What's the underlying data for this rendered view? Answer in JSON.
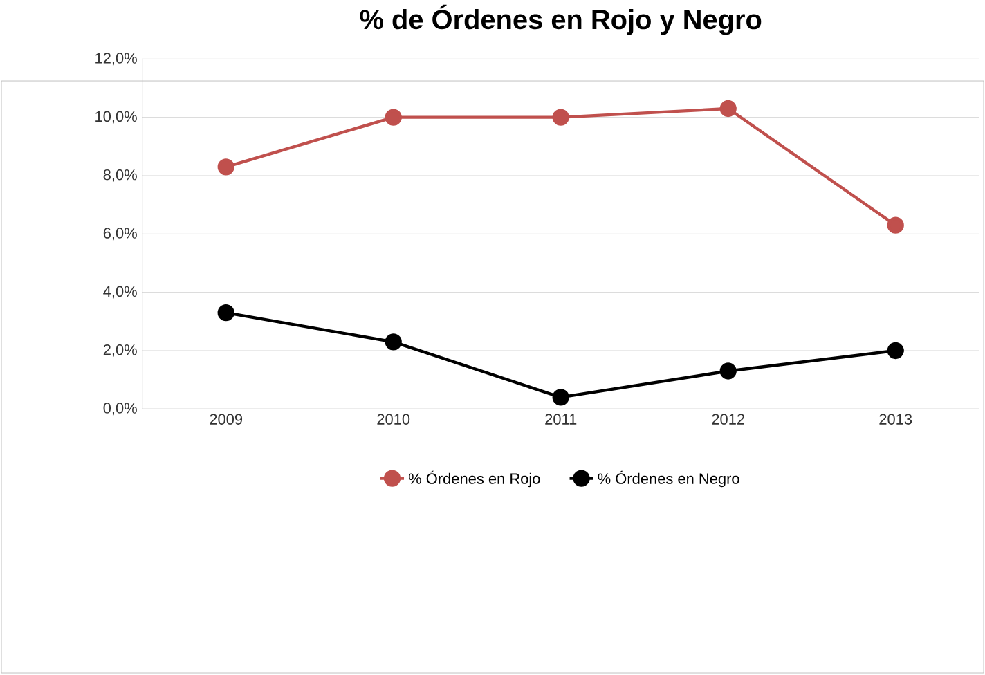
{
  "chart_data": {
    "type": "line",
    "title": "% de Órdenes en Rojo y Negro",
    "categories": [
      "2009",
      "2010",
      "2011",
      "2012",
      "2013"
    ],
    "series": [
      {
        "name": "% Órdenes en Rojo",
        "color": "#c0504d",
        "values": [
          8.3,
          10.0,
          10.0,
          10.3,
          6.3
        ]
      },
      {
        "name": "% Órdenes en Negro",
        "color": "#000000",
        "values": [
          3.3,
          2.3,
          0.4,
          1.3,
          2.0
        ]
      }
    ],
    "ylim": [
      0,
      12
    ],
    "yticks": [
      {
        "value": 0,
        "label": "0,0%"
      },
      {
        "value": 2,
        "label": "2,0%"
      },
      {
        "value": 4,
        "label": "4,0%"
      },
      {
        "value": 6,
        "label": "6,0%"
      },
      {
        "value": 8,
        "label": "8,0%"
      },
      {
        "value": 10,
        "label": "10,0%"
      },
      {
        "value": 12,
        "label": "12,0%"
      }
    ],
    "grid": "y",
    "legend": "bottom",
    "marker": "circle",
    "line_style": "solid"
  }
}
